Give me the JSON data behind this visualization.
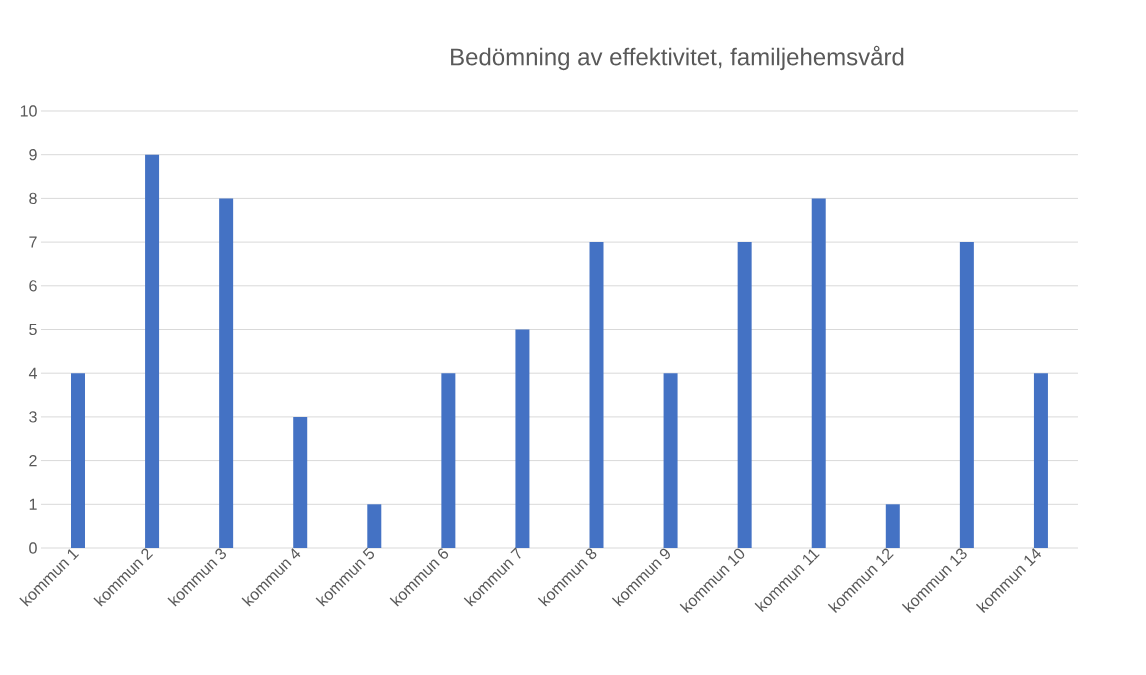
{
  "chart_data": {
    "type": "bar",
    "title": "Bedömning av effektivitet, familjehemsvård",
    "categories": [
      "kommun 1",
      "kommun 2",
      "kommun 3",
      "kommun 4",
      "kommun 5",
      "kommun 6",
      "kommun 7",
      "kommun 8",
      "kommun 9",
      "kommun 10",
      "kommun 11",
      "kommun 12",
      "kommun 13",
      "kommun 14"
    ],
    "values": [
      4,
      9,
      8,
      3,
      1,
      4,
      5,
      7,
      4,
      7,
      8,
      1,
      7,
      4
    ],
    "color": "#4472c4",
    "ylim": [
      0,
      10
    ],
    "yticks": [
      0,
      1,
      2,
      3,
      4,
      5,
      6,
      7,
      8,
      9,
      10
    ],
    "grid": "y"
  }
}
